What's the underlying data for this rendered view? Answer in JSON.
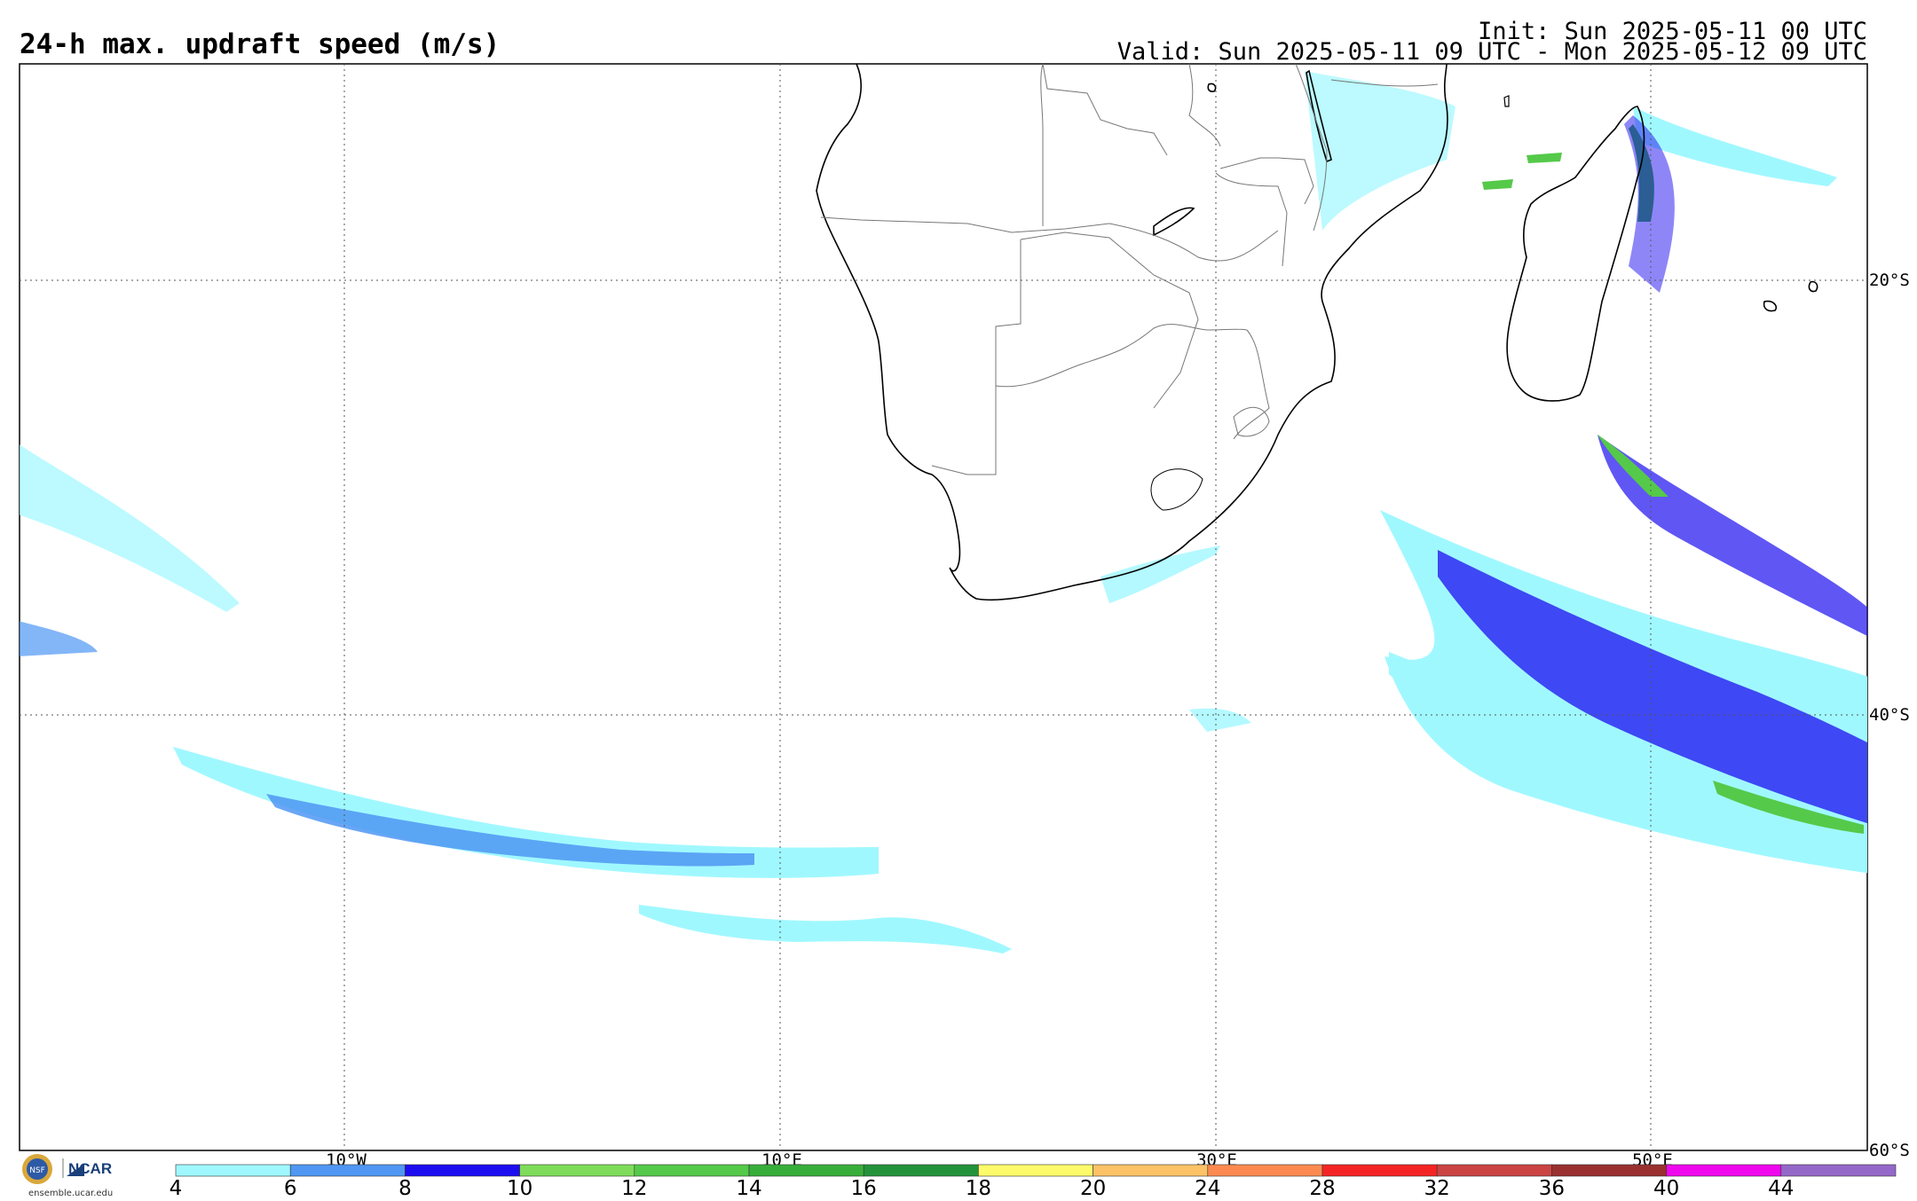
{
  "header": {
    "title": "24-h max. updraft speed (m/s)",
    "init": "Init: Sun 2025-05-11 00 UTC",
    "valid": "Valid: Sun 2025-05-11 09 UTC - Mon 2025-05-12 09 UTC"
  },
  "map": {
    "lon_labels": [
      "10°W",
      "10°E",
      "30°E",
      "50°E"
    ],
    "lat_labels": [
      "20°S",
      "40°S",
      "60°S"
    ]
  },
  "colorbar": {
    "ticks": [
      "4",
      "6",
      "8",
      "10",
      "12",
      "14",
      "16",
      "18",
      "20",
      "24",
      "28",
      "32",
      "36",
      "40",
      "44"
    ],
    "colors": [
      "#a0f8ff",
      "#4f97f3",
      "#1d0ef0",
      "#7edc5a",
      "#55c94a",
      "#37ae3a",
      "#23933b",
      "#fdfb6a",
      "#fdc266",
      "#fc8a50",
      "#f52424",
      "#cb4343",
      "#9a3030",
      "#ef08ed",
      "#9468c8"
    ]
  },
  "branding": {
    "nsf_icon": "nsf-logo-icon",
    "ncar_label": "NCAR",
    "site": "ensemble.ucar.edu"
  }
}
